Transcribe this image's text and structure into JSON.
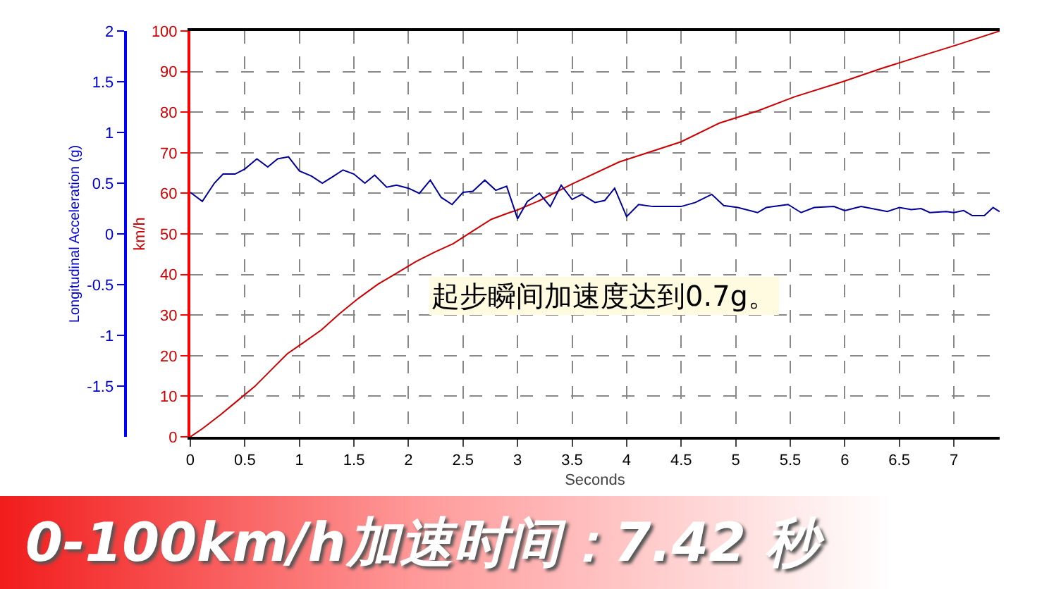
{
  "chart_data": {
    "type": "line",
    "title": "0-100km/h加速时间：7.42 秒",
    "xlabel": "Seconds",
    "ylabel": "km/h",
    "y2label": "Longitudinal Acceleration (g)",
    "annotations": [
      "起步瞬间加速度达到0.7g。"
    ],
    "xlim": [
      0,
      7.42
    ],
    "xticks": [
      0,
      0.5,
      1,
      1.5,
      2,
      2.5,
      3,
      3.5,
      4,
      4.5,
      5,
      5.5,
      6,
      6.5,
      7
    ],
    "ylim": [
      0,
      100
    ],
    "yticks": [
      0,
      10,
      20,
      30,
      40,
      50,
      60,
      70,
      80,
      90,
      100
    ],
    "y2lim": [
      -2,
      2
    ],
    "y2ticks": [
      -1.5,
      -1,
      -0.5,
      0,
      0.5,
      1,
      1.5,
      2
    ],
    "grid": true,
    "series": [
      {
        "color": "#cc0000",
        "x": [
          0,
          0.11,
          0.28,
          0.41,
          0.59,
          0.76,
          0.89,
          1.02,
          1.2,
          1.37,
          1.54,
          1.72,
          1.89,
          2.07,
          2.24,
          2.41,
          2.59,
          2.76,
          2.93,
          3.0,
          3.2,
          3.5,
          3.93,
          4.5,
          4.85,
          5.2,
          5.54,
          5.98,
          6.33,
          6.67,
          7.02,
          7.42
        ],
        "values": [
          0,
          2,
          5.5,
          8.4,
          12.4,
          17,
          20.5,
          22.9,
          26.3,
          30.4,
          34.1,
          37.6,
          40.3,
          43.2,
          45.5,
          47.6,
          50.7,
          53.6,
          55.3,
          55.9,
          58.2,
          62.3,
          67.7,
          72.7,
          77.3,
          80.3,
          83.8,
          87.5,
          90.7,
          93.6,
          96.5,
          100
        ]
      },
      {
        "color": "#000099",
        "axis": "y2",
        "x": [
          0,
          0.11,
          0.22,
          0.3,
          0.41,
          0.5,
          0.61,
          0.71,
          0.8,
          0.9,
          1.0,
          1.11,
          1.21,
          1.3,
          1.4,
          1.5,
          1.6,
          1.69,
          1.8,
          1.89,
          2.0,
          2.1,
          2.2,
          2.3,
          2.4,
          2.5,
          2.59,
          2.7,
          2.8,
          2.9,
          3.0,
          3.09,
          3.2,
          3.3,
          3.4,
          3.5,
          3.59,
          3.71,
          3.8,
          3.89,
          4.0,
          4.11,
          4.24,
          4.5,
          4.63,
          4.78,
          4.89,
          5.02,
          5.2,
          5.28,
          5.48,
          5.6,
          5.72,
          5.9,
          6.0,
          6.15,
          6.39,
          6.5,
          6.61,
          6.7,
          6.78,
          6.93,
          7.0,
          7.09,
          7.17,
          7.28,
          7.36,
          7.42
        ],
        "values": [
          0.41,
          0.32,
          0.5,
          0.59,
          0.59,
          0.64,
          0.74,
          0.66,
          0.74,
          0.76,
          0.62,
          0.57,
          0.5,
          0.56,
          0.63,
          0.59,
          0.5,
          0.58,
          0.46,
          0.48,
          0.45,
          0.4,
          0.53,
          0.36,
          0.29,
          0.41,
          0.42,
          0.53,
          0.43,
          0.47,
          0.15,
          0.32,
          0.4,
          0.27,
          0.48,
          0.34,
          0.39,
          0.31,
          0.33,
          0.45,
          0.17,
          0.29,
          0.27,
          0.27,
          0.31,
          0.39,
          0.28,
          0.26,
          0.21,
          0.26,
          0.29,
          0.21,
          0.26,
          0.27,
          0.23,
          0.27,
          0.22,
          0.26,
          0.24,
          0.25,
          0.21,
          0.22,
          0.21,
          0.23,
          0.18,
          0.18,
          0.26,
          0.22
        ]
      }
    ]
  }
}
